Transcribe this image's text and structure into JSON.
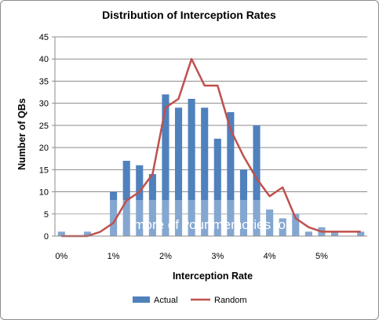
{
  "chart_data": {
    "type": "bar",
    "title": "Distribution of Interception Rates",
    "xlabel": "Interception Rate",
    "ylabel": "Number of QBs",
    "ylim": [
      0,
      45
    ],
    "yticks": [
      "0",
      "5",
      "10",
      "15",
      "20",
      "25",
      "30",
      "35",
      "40",
      "45"
    ],
    "xtick_labels": [
      "0%",
      "1%",
      "2%",
      "3%",
      "4%",
      "5%"
    ],
    "grid": true,
    "legend_position": "bottom",
    "x": [
      0,
      0.25,
      0.5,
      0.75,
      1.0,
      1.25,
      1.5,
      1.75,
      2.0,
      2.25,
      2.5,
      2.75,
      3.0,
      3.25,
      3.5,
      3.75,
      4.0,
      4.25,
      4.5,
      4.75,
      5.0,
      5.25,
      5.5,
      5.75
    ],
    "series": [
      {
        "name": "Actual",
        "type": "bar",
        "color": "#4f81bd",
        "values": [
          1,
          0,
          1,
          0,
          10,
          17,
          16,
          14,
          32,
          29,
          31,
          29,
          22,
          28,
          15,
          25,
          6,
          4,
          5,
          1,
          2,
          1,
          0,
          1
        ]
      },
      {
        "name": "Random",
        "type": "line",
        "color": "#c0504d",
        "values": [
          0,
          0,
          0,
          1,
          3,
          8,
          10,
          14,
          29,
          31,
          40,
          34,
          34,
          24,
          18,
          13,
          9,
          11,
          4,
          2,
          1,
          1,
          1,
          1
        ]
      }
    ]
  },
  "watermark": "more of your memories for"
}
